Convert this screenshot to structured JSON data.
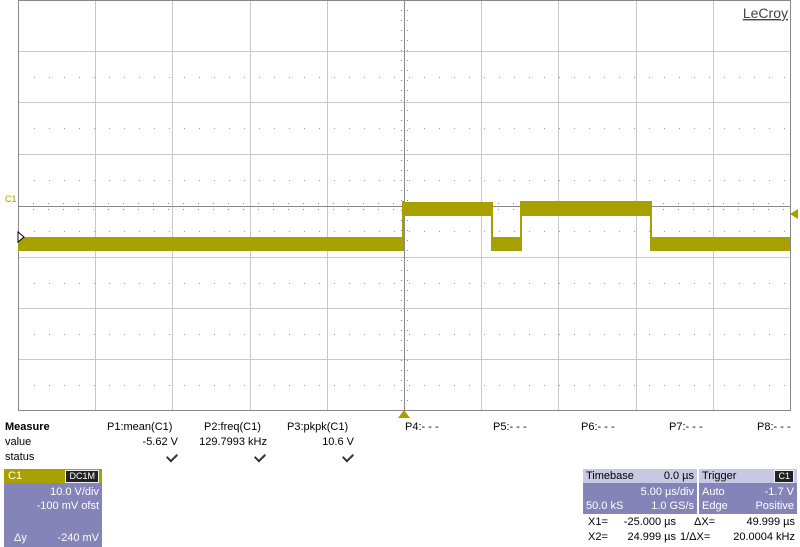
{
  "display": {
    "logo": "LeCroy",
    "channel_marker": "C1"
  },
  "measure": {
    "header": "Measure",
    "params": [
      "P1:mean(C1)",
      "P2:freq(C1)",
      "P3:pkpk(C1)",
      "P4:- - -",
      "P5:- - -",
      "P6:- - -",
      "P7:- - -",
      "P8:- - -"
    ],
    "row_labels": [
      "value",
      "status"
    ],
    "values": [
      "-5.62 V",
      "129.7993 kHz",
      "10.6 V"
    ]
  },
  "channel": {
    "name": "C1",
    "coupling": "DC1M",
    "scale": "10.0 V/div",
    "offset": "-100 mV ofst",
    "delta_label": "Δy",
    "delta_value": "-240 mV"
  },
  "timebase": {
    "title": "Timebase",
    "delay": "0.0 µs",
    "scale": "5.00 µs/div",
    "samples": "50.0 kS",
    "rate": "1.0 GS/s"
  },
  "trigger": {
    "title": "Trigger",
    "source": "C1",
    "mode": "Auto",
    "level": "-1.7 V",
    "type": "Edge",
    "slope": "Positive"
  },
  "cursors": [
    {
      "label": "X1=",
      "value": "-25.000 µs"
    },
    {
      "label": "ΔX=",
      "value": "49.999 µs"
    },
    {
      "label": "X2=",
      "value": "24.999 µs"
    },
    {
      "label": "1/ΔX=",
      "value": "20.0004 kHz"
    }
  ]
}
